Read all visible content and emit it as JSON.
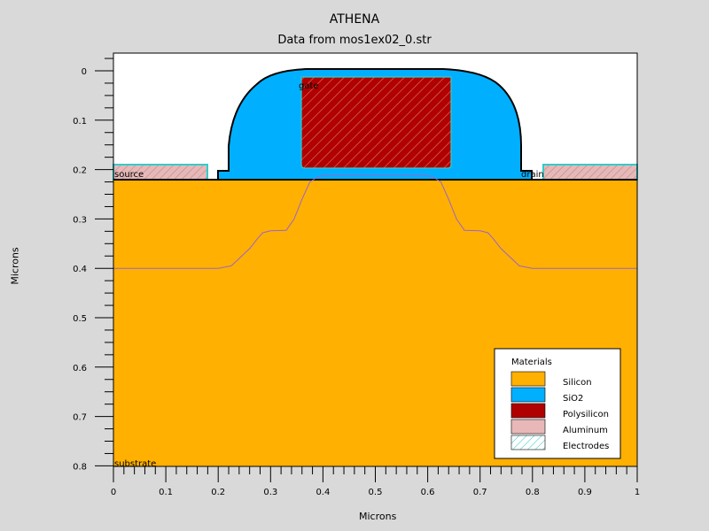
{
  "header": {
    "title": "ATHENA",
    "subtitle": "Data from mos1ex02_0.str"
  },
  "axes": {
    "xlabel": "Microns",
    "ylabel": "Microns",
    "x_ticks": [
      "0",
      "0.1",
      "0.2",
      "0.3",
      "0.4",
      "0.5",
      "0.6",
      "0.7",
      "0.8",
      "0.9",
      "1"
    ],
    "y_ticks": [
      "0",
      "0.1",
      "0.2",
      "0.3",
      "0.4",
      "0.5",
      "0.6",
      "0.7",
      "0.8"
    ],
    "xlim": [
      0,
      1
    ],
    "ylim": [
      -0.035,
      0.8
    ]
  },
  "regions": {
    "source": "source",
    "drain": "drain",
    "gate": "gate",
    "substrate": "substrate"
  },
  "legend": {
    "title": "Materials",
    "items": [
      {
        "label": "Silicon",
        "color": "#ffb000",
        "hatched": false
      },
      {
        "label": "SiO2",
        "color": "#00b0ff",
        "hatched": false
      },
      {
        "label": "Polysilicon",
        "color": "#b00000",
        "hatched": false
      },
      {
        "label": "Aluminum",
        "color": "#e8b8b8",
        "hatched": false
      },
      {
        "label": "Electrodes",
        "color": "#ffffff",
        "hatched": true
      }
    ]
  },
  "colors": {
    "silicon": "#ffb000",
    "oxide": "#00b0ff",
    "polysilicon": "#b00000",
    "aluminum": "#e8b8b8",
    "electrode_edge": "#33cccc",
    "junction": "#9966cc",
    "background": "#d9d9d9"
  },
  "chart_data": {
    "type": "area",
    "structure": {
      "silicon_surface_y": 0.218,
      "source_contact_x": [
        0,
        0.18
      ],
      "drain_contact_x": [
        0.82,
        1
      ],
      "contact_y": [
        0.19,
        0.218
      ],
      "poly_x": [
        0.36,
        0.645
      ],
      "poly_y": [
        0.013,
        0.19
      ],
      "oxide_x": [
        0.21,
        0.79
      ],
      "oxide_top_y": 0
    },
    "junction_profile": {
      "x": [
        0,
        0.2,
        0.225,
        0.245,
        0.26,
        0.275,
        0.285,
        0.3,
        0.33,
        0.345,
        0.36,
        0.375,
        0.39,
        0.4,
        0.5,
        0.6,
        0.61,
        0.625,
        0.64,
        0.655,
        0.67,
        0.7,
        0.715,
        0.725,
        0.74,
        0.755,
        0.775,
        0.8,
        1
      ],
      "y": [
        0.4,
        0.4,
        0.395,
        0.375,
        0.36,
        0.34,
        0.328,
        0.324,
        0.323,
        0.3,
        0.26,
        0.225,
        0.215,
        0.212,
        0.212,
        0.212,
        0.215,
        0.225,
        0.26,
        0.3,
        0.323,
        0.324,
        0.328,
        0.34,
        0.36,
        0.375,
        0.395,
        0.4,
        0.4
      ]
    }
  }
}
